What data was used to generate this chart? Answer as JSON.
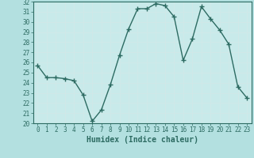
{
  "x": [
    0,
    1,
    2,
    3,
    4,
    5,
    6,
    7,
    8,
    9,
    10,
    11,
    12,
    13,
    14,
    15,
    16,
    17,
    18,
    19,
    20,
    21,
    22,
    23
  ],
  "y": [
    25.7,
    24.5,
    24.5,
    24.4,
    24.2,
    22.8,
    20.2,
    21.3,
    23.8,
    26.7,
    29.3,
    31.3,
    31.3,
    31.8,
    31.6,
    30.5,
    26.2,
    28.3,
    31.5,
    30.3,
    29.2,
    27.8,
    23.6,
    22.5
  ],
  "line_color": "#2d6b62",
  "marker": "+",
  "marker_size": 4,
  "background_color": "#b3e0e0",
  "plot_bg_color": "#c8eaea",
  "grid_color": "#d0e8e8",
  "xlabel": "Humidex (Indice chaleur)",
  "ylim": [
    20,
    32
  ],
  "xlim": [
    -0.5,
    23.5
  ],
  "yticks": [
    20,
    21,
    22,
    23,
    24,
    25,
    26,
    27,
    28,
    29,
    30,
    31,
    32
  ],
  "xticks": [
    0,
    1,
    2,
    3,
    4,
    5,
    6,
    7,
    8,
    9,
    10,
    11,
    12,
    13,
    14,
    15,
    16,
    17,
    18,
    19,
    20,
    21,
    22,
    23
  ],
  "tick_color": "#2d6b62",
  "xlabel_fontsize": 7,
  "tick_fontsize": 5.5,
  "linewidth": 1.0,
  "marker_color": "#2d6b62"
}
